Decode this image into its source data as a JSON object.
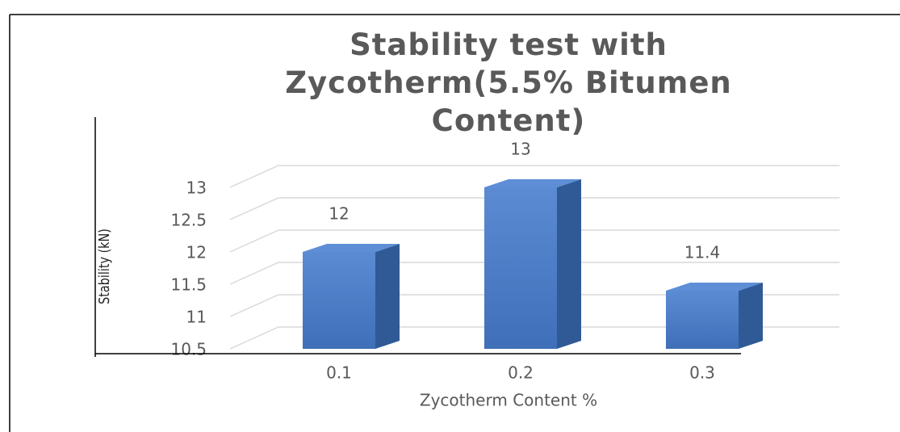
{
  "chart_data": {
    "type": "bar3d",
    "title": "Stability test with Zycotherm(5.5% Bitumen Content)",
    "x_label": "Zycotherm Content %",
    "y_label": "Stability (kN)",
    "categories": [
      "0.1",
      "0.2",
      "0.3"
    ],
    "values": [
      12,
      13,
      11.4
    ],
    "color": "#4a7bc4",
    "ylim": [
      10.5,
      13
    ],
    "yticks": [
      10.5,
      11,
      11.5,
      12,
      12.5,
      13
    ],
    "grid": true
  }
}
